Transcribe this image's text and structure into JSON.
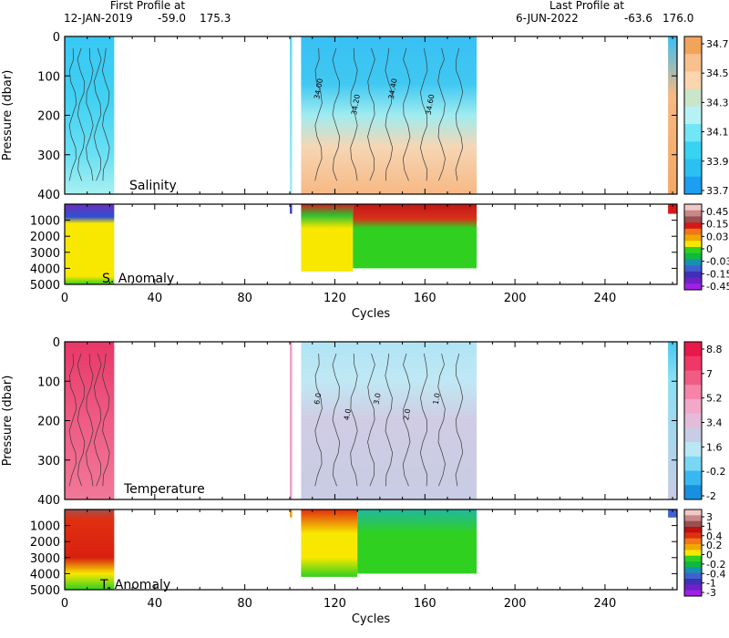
{
  "header": {
    "first_label": "First Profile at",
    "first_date": "12-JAN-2019",
    "first_lat": "-59.0",
    "first_lon": "175.3",
    "last_label": "Last Profile at",
    "last_date": "6-JUN-2022",
    "last_lat": "-63.6",
    "last_lon": "176.0"
  },
  "colors": {
    "missing": "#ffffff",
    "frame": "#000000",
    "contour": "#3a3a3a"
  },
  "chart_data": [
    {
      "type": "heatmap",
      "name": "salinity",
      "label": "Salinity",
      "ylabel": "Pressure (dbar)",
      "xlim": [
        0,
        272
      ],
      "ylim": [
        400,
        0
      ],
      "yticks": [
        0,
        100,
        200,
        300,
        400
      ],
      "xticks": [
        0,
        40,
        80,
        120,
        160,
        200,
        240
      ],
      "contour_labels": [
        "34.00",
        "34.20",
        "34.40",
        "34.60"
      ],
      "colorbar": {
        "labels": [
          "34.7",
          "34.5",
          "34.3",
          "34.1",
          "33.9",
          "33.7"
        ],
        "colors": [
          "#f2a45a",
          "#f7c08e",
          "#fad5ad",
          "#c9e6c8",
          "#b6f2f5",
          "#71e6f7",
          "#38d3f3",
          "#2bbff2",
          "#1c9ff0"
        ]
      },
      "segments": [
        {
          "x": [
            0,
            22
          ],
          "profile": [
            [
              0,
              "#38c8f5"
            ],
            [
              150,
              "#40d0f2"
            ],
            [
              300,
              "#6ae0f4"
            ],
            [
              400,
              "#a8f0f0"
            ]
          ]
        },
        {
          "x": [
            100,
            101
          ],
          "profile": [
            [
              0,
              "#60d8f4"
            ],
            [
              400,
              "#a0ecf4"
            ]
          ]
        },
        {
          "x": [
            105,
            183
          ],
          "profile": [
            [
              0,
              "#38c0f4"
            ],
            [
              120,
              "#40c8f2"
            ],
            [
              200,
              "#a0ecf0"
            ],
            [
              280,
              "#f6d6b4"
            ],
            [
              400,
              "#f7b884"
            ]
          ]
        },
        {
          "x": [
            268,
            272
          ],
          "profile": [
            [
              0,
              "#38c0f4"
            ],
            [
              150,
              "#f7b884"
            ],
            [
              400,
              "#f4a864"
            ]
          ]
        }
      ]
    },
    {
      "type": "heatmap",
      "name": "salinity-anomaly",
      "label": "S. Anomaly",
      "xlabel": "Cycles",
      "xlim": [
        0,
        272
      ],
      "ylim": [
        5000,
        0
      ],
      "yticks": [
        1000,
        2000,
        3000,
        4000,
        5000
      ],
      "xticks": [
        0,
        40,
        80,
        120,
        160,
        200,
        240
      ],
      "colorbar": {
        "labels": [
          "0.45",
          "0.15",
          "0.03",
          "0",
          "-0.03",
          "-0.15",
          "-0.45"
        ],
        "colors": [
          "#f0c8c8",
          "#c88888",
          "#9a5050",
          "#d81818",
          "#f07818",
          "#f0a800",
          "#f8e800",
          "#30d020",
          "#10b840",
          "#1890b0",
          "#4060d0",
          "#4030b8",
          "#7020c8",
          "#a020e8"
        ]
      },
      "segments": [
        {
          "x": [
            0,
            22
          ],
          "profile": [
            [
              0,
              "#6a30c0"
            ],
            [
              800,
              "#3050d0"
            ],
            [
              1200,
              "#f8e800"
            ],
            [
              4500,
              "#f8e800"
            ],
            [
              5000,
              "#30d020"
            ]
          ]
        },
        {
          "x": [
            100,
            101
          ],
          "profile": [
            [
              0,
              "#4040c8"
            ],
            [
              600,
              "#4040c8"
            ]
          ]
        },
        {
          "x": [
            105,
            128
          ],
          "profile": [
            [
              0,
              "#d02020"
            ],
            [
              700,
              "#30c030"
            ],
            [
              1500,
              "#f8e800"
            ],
            [
              4200,
              "#f8e800"
            ]
          ]
        },
        {
          "x": [
            128,
            183
          ],
          "profile": [
            [
              0,
              "#c01818"
            ],
            [
              900,
              "#d83018"
            ],
            [
              1500,
              "#30d020"
            ],
            [
              4000,
              "#30d020"
            ]
          ]
        },
        {
          "x": [
            268,
            272
          ],
          "profile": [
            [
              0,
              "#d81818"
            ],
            [
              600,
              "#d81818"
            ]
          ]
        }
      ]
    },
    {
      "type": "heatmap",
      "name": "temperature",
      "label": "Temperature",
      "ylabel": "Pressure (dbar)",
      "xlim": [
        0,
        272
      ],
      "ylim": [
        400,
        0
      ],
      "yticks": [
        0,
        100,
        200,
        300,
        400
      ],
      "xticks": [
        0,
        40,
        80,
        120,
        160,
        200,
        240
      ],
      "contour_labels": [
        "6.0",
        "4.0",
        "3.0",
        "2.0",
        "1.0"
      ],
      "colorbar": {
        "labels": [
          "8.8",
          "7",
          "5.2",
          "3.4",
          "1.6",
          "-0.2",
          "-2"
        ],
        "colors": [
          "#e8184a",
          "#ef3866",
          "#f05c84",
          "#f584a8",
          "#f3a8c8",
          "#e4bcda",
          "#c8cce4",
          "#b8e8f4",
          "#78d8f4",
          "#38b8f0",
          "#1890e0"
        ]
      },
      "segments": [
        {
          "x": [
            0,
            22
          ],
          "profile": [
            [
              0,
              "#e83868"
            ],
            [
              200,
              "#ef5c84"
            ],
            [
              400,
              "#f07898"
            ]
          ]
        },
        {
          "x": [
            100,
            101
          ],
          "profile": [
            [
              0,
              "#f0a0c4"
            ],
            [
              400,
              "#f0a0c4"
            ]
          ]
        },
        {
          "x": [
            105,
            183
          ],
          "profile": [
            [
              0,
              "#b0e4f4"
            ],
            [
              100,
              "#c0e8f4"
            ],
            [
              200,
              "#d0cce4"
            ],
            [
              400,
              "#c8cce4"
            ]
          ]
        },
        {
          "x": [
            268,
            272
          ],
          "profile": [
            [
              0,
              "#48c8f2"
            ],
            [
              100,
              "#8ae0f4"
            ],
            [
              400,
              "#c8cce4"
            ]
          ]
        }
      ]
    },
    {
      "type": "heatmap",
      "name": "temperature-anomaly",
      "label": "T. Anomaly",
      "xlabel": "Cycles",
      "xlim": [
        0,
        272
      ],
      "ylim": [
        5000,
        0
      ],
      "yticks": [
        1000,
        2000,
        3000,
        4000,
        5000
      ],
      "xticks": [
        0,
        40,
        80,
        120,
        160,
        200,
        240
      ],
      "colorbar": {
        "labels": [
          "3",
          "1",
          "0.4",
          "0.2",
          "0",
          "-0.2",
          "-0.4",
          "-1",
          "-3"
        ],
        "colors": [
          "#f0c8c8",
          "#c88888",
          "#9a5050",
          "#c01010",
          "#e03010",
          "#f07818",
          "#f0a800",
          "#f8e800",
          "#30d020",
          "#10b840",
          "#1890b0",
          "#4060d0",
          "#4030b8",
          "#7020c8",
          "#a020e8"
        ]
      },
      "segments": [
        {
          "x": [
            0,
            22
          ],
          "profile": [
            [
              0,
              "#a05050"
            ],
            [
              600,
              "#e03010"
            ],
            [
              3000,
              "#d82010"
            ],
            [
              4000,
              "#f8e800"
            ],
            [
              5000,
              "#30d020"
            ]
          ]
        },
        {
          "x": [
            100,
            101
          ],
          "profile": [
            [
              0,
              "#f0a000"
            ],
            [
              500,
              "#f0a000"
            ]
          ]
        },
        {
          "x": [
            105,
            130
          ],
          "profile": [
            [
              0,
              "#e03010"
            ],
            [
              1500,
              "#f8e800"
            ],
            [
              3000,
              "#f8e800"
            ],
            [
              4200,
              "#30d020"
            ]
          ]
        },
        {
          "x": [
            130,
            183
          ],
          "profile": [
            [
              0,
              "#20b8a0"
            ],
            [
              1500,
              "#30d020"
            ],
            [
              4000,
              "#30d020"
            ]
          ]
        },
        {
          "x": [
            268,
            272
          ],
          "profile": [
            [
              0,
              "#4060d0"
            ],
            [
              500,
              "#4060d0"
            ]
          ]
        }
      ]
    }
  ]
}
